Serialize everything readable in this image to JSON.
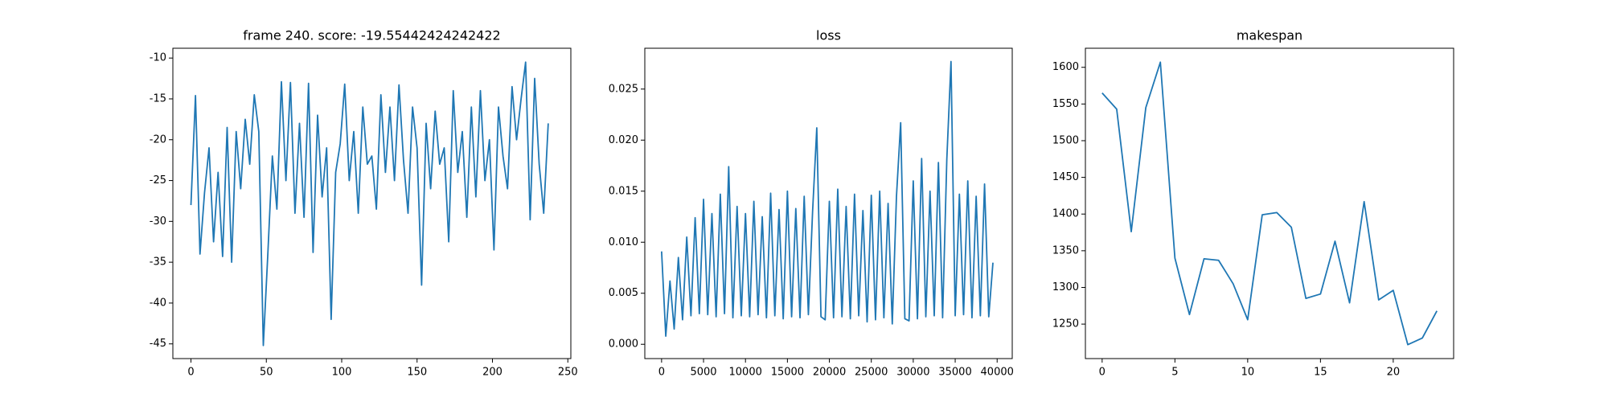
{
  "chart_data": [
    {
      "type": "line",
      "title": "frame 240. score: -19.55442424242422",
      "color": "#1f77b4",
      "x": [
        0,
        3,
        6,
        9,
        12,
        15,
        18,
        21,
        24,
        27,
        30,
        33,
        36,
        39,
        42,
        45,
        48,
        51,
        54,
        57,
        60,
        63,
        66,
        69,
        72,
        75,
        78,
        81,
        84,
        87,
        90,
        93,
        96,
        99,
        102,
        105,
        108,
        111,
        114,
        117,
        120,
        123,
        126,
        129,
        132,
        135,
        138,
        141,
        144,
        147,
        150,
        153,
        156,
        159,
        162,
        165,
        168,
        171,
        174,
        177,
        180,
        183,
        186,
        189,
        192,
        195,
        198,
        201,
        204,
        207,
        210,
        213,
        216,
        219,
        222,
        225,
        228,
        231,
        234,
        237
      ],
      "values": [
        -28,
        -14.6,
        -34,
        -26.5,
        -21,
        -32.5,
        -24,
        -34.3,
        -18.5,
        -35,
        -19,
        -26,
        -17.5,
        -23,
        -14.5,
        -19,
        -45.2,
        -34,
        -22,
        -28.5,
        -12.9,
        -25,
        -13,
        -29,
        -18,
        -29.5,
        -13.1,
        -33.8,
        -17,
        -27,
        -21,
        -42,
        -24,
        -20.5,
        -13.2,
        -25,
        -19,
        -29,
        -16,
        -23,
        -22,
        -28.5,
        -14.5,
        -24,
        -16,
        -25,
        -13.3,
        -22.5,
        -29,
        -16,
        -21,
        -37.8,
        -18,
        -26,
        -16.5,
        -23,
        -21,
        -32.5,
        -14,
        -24,
        -19,
        -29.5,
        -16,
        -27,
        -14,
        -25,
        -20,
        -33.5,
        -16,
        -22,
        -26,
        -13.5,
        -20,
        -15,
        -10.5,
        -29.8,
        -12.5,
        -23,
        -29,
        -18
      ],
      "xlim": [
        -12,
        252
      ],
      "ylim": [
        -46.8,
        -8.8
      ],
      "xticks": [
        0,
        50,
        100,
        150,
        200,
        250
      ],
      "yticks": [
        -45,
        -40,
        -35,
        -30,
        -25,
        -20,
        -15,
        -10
      ]
    },
    {
      "type": "line",
      "title": "loss",
      "color": "#1f77b4",
      "x": [
        0,
        500,
        1000,
        1500,
        2000,
        2500,
        3000,
        3500,
        4000,
        4500,
        5000,
        5500,
        6000,
        6500,
        7000,
        7500,
        8000,
        8500,
        9000,
        9500,
        10000,
        10500,
        11000,
        11500,
        12000,
        12500,
        13000,
        13500,
        14000,
        14500,
        15000,
        15500,
        16000,
        16500,
        17000,
        17500,
        18000,
        18500,
        19000,
        19500,
        20000,
        20500,
        21000,
        21500,
        22000,
        22500,
        23000,
        23500,
        24000,
        24500,
        25000,
        25500,
        26000,
        26500,
        27000,
        27500,
        28000,
        28500,
        29000,
        29500,
        30000,
        30500,
        31000,
        31500,
        32000,
        32500,
        33000,
        33500,
        34000,
        34500,
        35000,
        35500,
        36000,
        36500,
        37000,
        37500,
        38000,
        38500,
        39000,
        39500
      ],
      "values": [
        0.0091,
        0.0008,
        0.0062,
        0.0015,
        0.0085,
        0.0024,
        0.0105,
        0.0028,
        0.0124,
        0.003,
        0.0142,
        0.0029,
        0.0128,
        0.0027,
        0.0147,
        0.003,
        0.0174,
        0.0026,
        0.0135,
        0.0028,
        0.0128,
        0.0027,
        0.014,
        0.0029,
        0.0125,
        0.0026,
        0.0148,
        0.0028,
        0.0132,
        0.0025,
        0.015,
        0.0027,
        0.0133,
        0.0026,
        0.0145,
        0.0029,
        0.013,
        0.0212,
        0.0027,
        0.0024,
        0.014,
        0.0026,
        0.0152,
        0.0027,
        0.0135,
        0.0025,
        0.0147,
        0.0028,
        0.0131,
        0.0022,
        0.0146,
        0.0024,
        0.015,
        0.0026,
        0.0138,
        0.002,
        0.0145,
        0.0217,
        0.0025,
        0.0023,
        0.016,
        0.0025,
        0.0182,
        0.0027,
        0.015,
        0.0028,
        0.0178,
        0.0026,
        0.0181,
        0.0277,
        0.0028,
        0.0147,
        0.0029,
        0.016,
        0.0026,
        0.0145,
        0.0028,
        0.0157,
        0.0027,
        0.008
      ],
      "xlim": [
        -2000,
        41800
      ],
      "ylim": [
        -0.0014,
        0.029
      ],
      "xticks": [
        0,
        5000,
        10000,
        15000,
        20000,
        25000,
        30000,
        35000,
        40000
      ],
      "yticks": [
        {
          "value": 0,
          "label": "0.000"
        },
        {
          "value": 0.005,
          "label": "0.005"
        },
        {
          "value": 0.01,
          "label": "0.010"
        },
        {
          "value": 0.015,
          "label": "0.015"
        },
        {
          "value": 0.02,
          "label": "0.020"
        },
        {
          "value": 0.025,
          "label": "0.025"
        }
      ]
    },
    {
      "type": "line",
      "title": "makespan",
      "color": "#1f77b4",
      "x": [
        0,
        1,
        2,
        3,
        4,
        5,
        6,
        7,
        8,
        9,
        10,
        11,
        12,
        13,
        14,
        15,
        16,
        17,
        18,
        19,
        20,
        21,
        22,
        23
      ],
      "values": [
        1565,
        1543,
        1376,
        1545,
        1607,
        1340,
        1263,
        1339,
        1337,
        1305,
        1256,
        1399,
        1402,
        1382,
        1285,
        1291,
        1363,
        1279,
        1417,
        1283,
        1296,
        1222,
        1231,
        1268
      ],
      "xlim": [
        -1.15,
        24.15
      ],
      "ylim": [
        1203,
        1626
      ],
      "xticks": [
        0,
        5,
        10,
        15,
        20
      ],
      "yticks": [
        1250,
        1300,
        1350,
        1400,
        1450,
        1500,
        1550,
        1600
      ]
    }
  ]
}
